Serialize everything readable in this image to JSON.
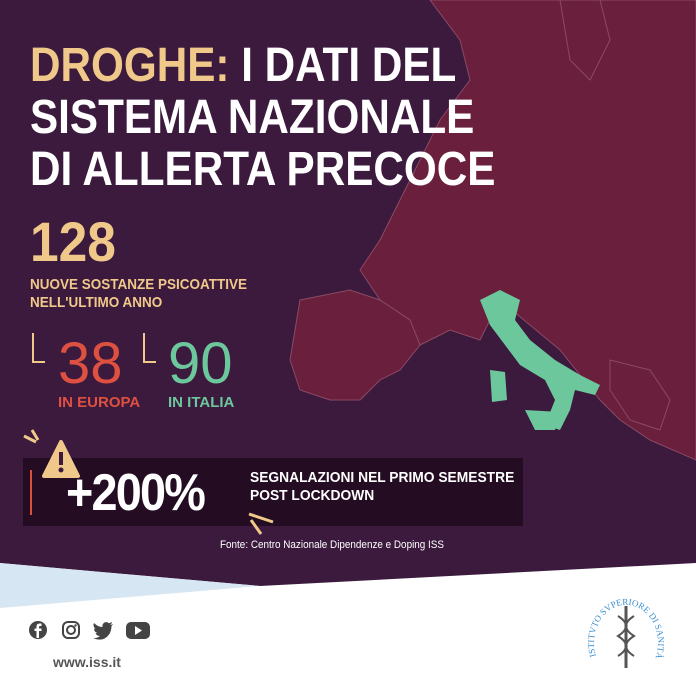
{
  "title": {
    "accent": "DROGHE:",
    "line1_rest": " I DATI DEL",
    "line2": "SISTEMA NAZIONALE",
    "line3": "DI ALLERTA PRECOCE"
  },
  "stats": {
    "total": "128",
    "total_label_1": "NUOVE SOSTANZE PSICOATTIVE",
    "total_label_2": "NELL'ULTIMO ANNO",
    "europe_value": "38",
    "europe_label": "IN EUROPA",
    "italy_value": "90",
    "italy_label": "IN ITALIA"
  },
  "alert": {
    "icon": "warning-triangle-icon",
    "value": "+200%",
    "text_1": "SEGNALAZIONI NEL PRIMO SEMESTRE",
    "text_2": "POST LOCKDOWN"
  },
  "source": "Fonte: Centro Nazionale Dipendenze e Doping ISS",
  "footer": {
    "social": [
      "facebook-icon",
      "instagram-icon",
      "twitter-icon",
      "youtube-icon"
    ],
    "url": "www.iss.it",
    "logo_text": "ISTITVTO SVPERIORE DI SANITÀ"
  },
  "colors": {
    "background": "#3b1a3d",
    "gold": "#f0c98a",
    "europe": "#de5040",
    "italy": "#6dc79d",
    "map": "#6a1f3c"
  }
}
